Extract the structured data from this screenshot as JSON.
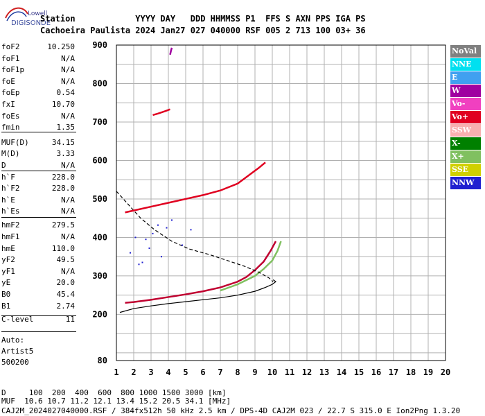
{
  "logo": {
    "line1": "Lowell",
    "line2": "DIGISONDE"
  },
  "header": {
    "labels": "Station            YYYY DAY   DDD HHMMSS P1  FFS S AXN PPS IGA PS",
    "values": "Cachoeira Paulista 2024 Jan27 027 040000 RSF 005 2 713 100 03+ 36"
  },
  "params": [
    {
      "k": "foF2",
      "v": "10.250"
    },
    {
      "k": "foF1",
      "v": "N/A"
    },
    {
      "k": "foF1p",
      "v": "N/A"
    },
    {
      "k": "foE",
      "v": "N/A"
    },
    {
      "k": "foEp",
      "v": "0.54"
    },
    {
      "k": "fxI",
      "v": "10.70"
    },
    {
      "k": "foEs",
      "v": "N/A"
    },
    {
      "k": "fmin",
      "v": "1.35"
    },
    {
      "k": "MUF(D)",
      "v": "34.15"
    },
    {
      "k": "M(D)",
      "v": "3.33"
    },
    {
      "k": "D",
      "v": "N/A"
    },
    {
      "k": "h`F",
      "v": "228.0"
    },
    {
      "k": "h`F2",
      "v": "228.0"
    },
    {
      "k": "h`E",
      "v": "N/A"
    },
    {
      "k": "h`Es",
      "v": "N/A"
    },
    {
      "k": "hmF2",
      "v": "279.5"
    },
    {
      "k": "hmF1",
      "v": "N/A"
    },
    {
      "k": "hmE",
      "v": "110.0"
    },
    {
      "k": "yF2",
      "v": "49.5"
    },
    {
      "k": "yF1",
      "v": "N/A"
    },
    {
      "k": "yE",
      "v": "20.0"
    },
    {
      "k": "B0",
      "v": "45.4"
    },
    {
      "k": "B1",
      "v": "2.74"
    },
    {
      "k": "C-level",
      "v": "11"
    }
  ],
  "extra": {
    "auto_label": "Auto:",
    "artist": "Artist5",
    "version": "500200"
  },
  "legend": [
    {
      "label": "NoVal",
      "color": "#808080"
    },
    {
      "label": "NNE",
      "color": "#00e0f0"
    },
    {
      "label": "E",
      "color": "#40a0f0"
    },
    {
      "label": "W",
      "color": "#a000a0"
    },
    {
      "label": "Vo-",
      "color": "#f040c0"
    },
    {
      "label": "Vo+",
      "color": "#e00020"
    },
    {
      "label": "SSW",
      "color": "#f8b0b0"
    },
    {
      "label": "X-",
      "color": "#008000"
    },
    {
      "label": "X+",
      "color": "#80c060"
    },
    {
      "label": "SSE",
      "color": "#d0d000"
    },
    {
      "label": "NNW",
      "color": "#2020d0"
    }
  ],
  "footer": {
    "d_row": "D     100  200  400  600  800 1000 1500 3000 [km]",
    "muf_row": "MUF  10.6 10.7 11.2 12.1 13.4 15.2 20.5 34.1 [MHz]",
    "info_row": "CAJ2M_2024027040000.RSF / 384fx512h 50 kHz 2.5 km / DPS-4D CAJ2M 023 / 22.7 S 315.0 E Ion2Png 1.3.20"
  },
  "chart_data": {
    "type": "scatter",
    "x_ticks": [
      "1",
      "2",
      "3",
      "4",
      "5",
      "6",
      "7",
      "8",
      "9",
      "10",
      "11",
      "12",
      "13",
      "14",
      "15",
      "16",
      "17",
      "18",
      "19",
      "20"
    ],
    "y_ticks": [
      "80",
      "200",
      "300",
      "400",
      "500",
      "600",
      "700",
      "800",
      "900"
    ],
    "xlim": [
      1,
      20
    ],
    "ylim": [
      80,
      900
    ],
    "grid": true,
    "series": [
      {
        "color": "#000000",
        "x": [
          1.2,
          2,
          3,
          4,
          5,
          6,
          7,
          8,
          9,
          9.6,
          10,
          10.2,
          10.05
        ],
        "y": [
          205,
          215,
          222,
          228,
          233,
          238,
          243,
          250,
          260,
          270,
          278,
          285,
          290
        ]
      },
      {
        "color": "#c00030",
        "x": [
          1.5,
          2,
          3,
          4,
          5,
          6,
          7,
          8,
          8.5,
          9,
          9.5,
          9.9,
          10.2
        ],
        "y": [
          230,
          232,
          238,
          245,
          252,
          260,
          270,
          285,
          297,
          315,
          337,
          365,
          390
        ]
      },
      {
        "color": "#80c060",
        "x": [
          7,
          8,
          9,
          9.5,
          10,
          10.3,
          10.5
        ],
        "y": [
          262,
          278,
          300,
          318,
          340,
          365,
          390
        ]
      },
      {
        "color": "#000000",
        "x": [
          1,
          1.6,
          2.4,
          3.2,
          4.2,
          5.2,
          6.4,
          7.4,
          8.4,
          9.2,
          9.8,
          10.05
        ],
        "y": [
          520,
          490,
          450,
          420,
          390,
          370,
          355,
          340,
          325,
          310,
          295,
          285
        ]
      },
      {
        "color": "#e00020",
        "x": [
          1.5,
          2,
          3,
          4,
          5,
          6,
          7,
          8,
          8.6,
          9.2,
          9.6
        ],
        "y": [
          465,
          470,
          480,
          490,
          500,
          510,
          522,
          540,
          560,
          580,
          595
        ]
      },
      {
        "color": "#2020d0",
        "x": [
          1.8,
          2.3,
          2.7,
          3.1,
          3.6,
          4.2,
          4.8,
          5.3,
          3.9,
          2.5,
          2.1,
          2.9,
          3.4
        ],
        "y": [
          360,
          330,
          395,
          410,
          350,
          445,
          380,
          420,
          425,
          335,
          400,
          372,
          432
        ]
      },
      {
        "color": "#e00020",
        "x": [
          3.1,
          3.4,
          3.8,
          4.1
        ],
        "y": [
          718,
          722,
          728,
          733
        ]
      },
      {
        "color": "#a000a0",
        "x": [
          4.1,
          4.15,
          4.2
        ],
        "y": [
          875,
          885,
          893
        ]
      }
    ]
  }
}
